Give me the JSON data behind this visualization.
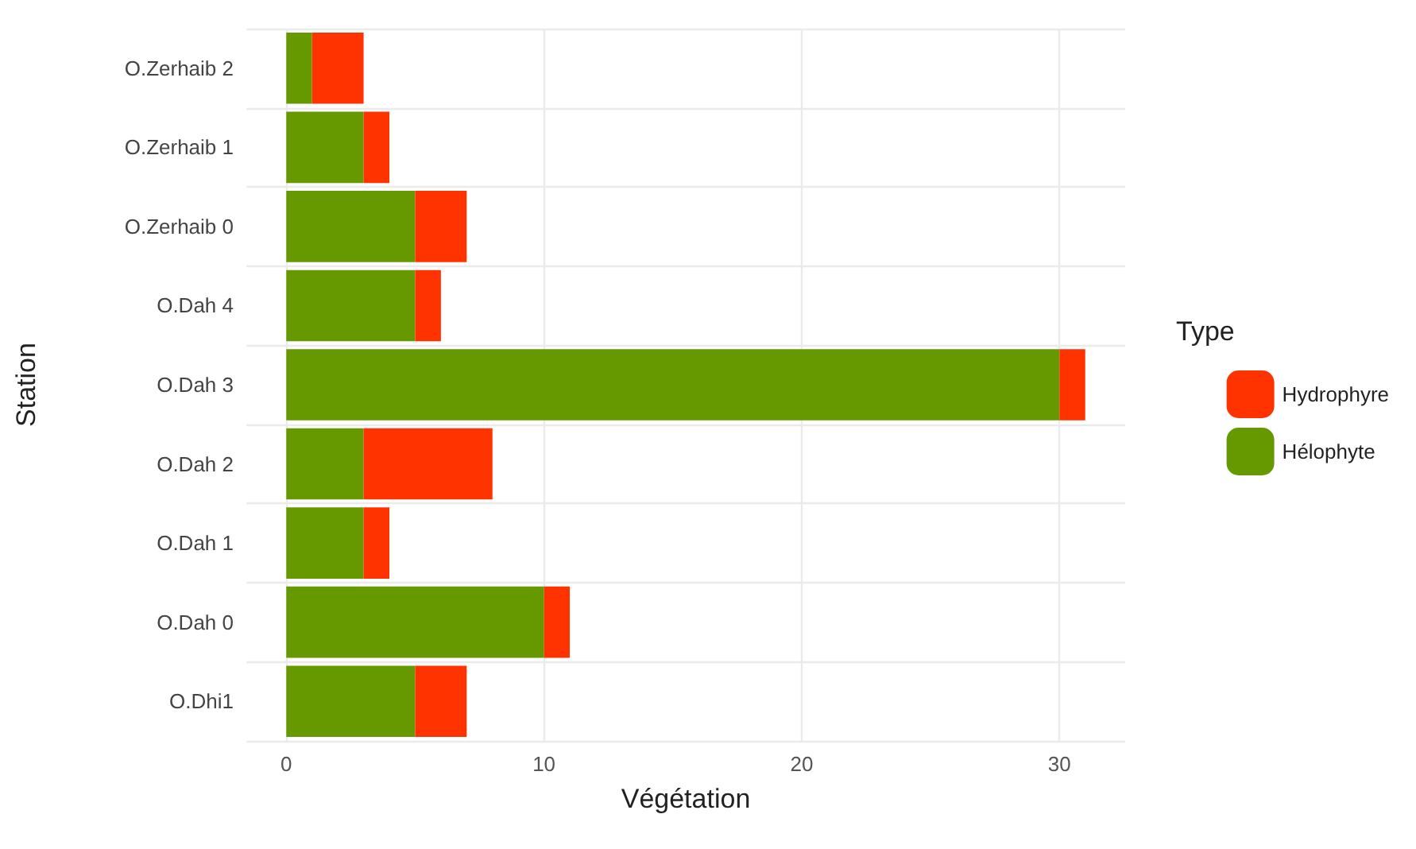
{
  "chart_data": {
    "type": "bar",
    "orientation": "horizontal",
    "stacked": true,
    "xlabel": "Végétation",
    "ylabel": "Station",
    "legend_title": "Type",
    "legend": "right",
    "grid": true,
    "categories": [
      "O.Zerhaib 2",
      "O.Zerhaib 1",
      "O.Zerhaib 0",
      "O.Dah 4",
      "O.Dah 3",
      "O.Dah 2",
      "O.Dah 1",
      "O.Dah 0",
      "O.Dhi1"
    ],
    "series": [
      {
        "name": "Hélophyte",
        "color": "#669900",
        "values": [
          1,
          3,
          5,
          5,
          30,
          3,
          3,
          10,
          5
        ]
      },
      {
        "name": "Hydrophyre",
        "color": "#ff3300",
        "values": [
          2,
          1,
          2,
          1,
          1,
          5,
          1,
          1,
          2
        ]
      }
    ],
    "xlim": [
      -1.55,
      32.55
    ],
    "xticks": [
      0,
      10,
      20,
      30
    ]
  }
}
